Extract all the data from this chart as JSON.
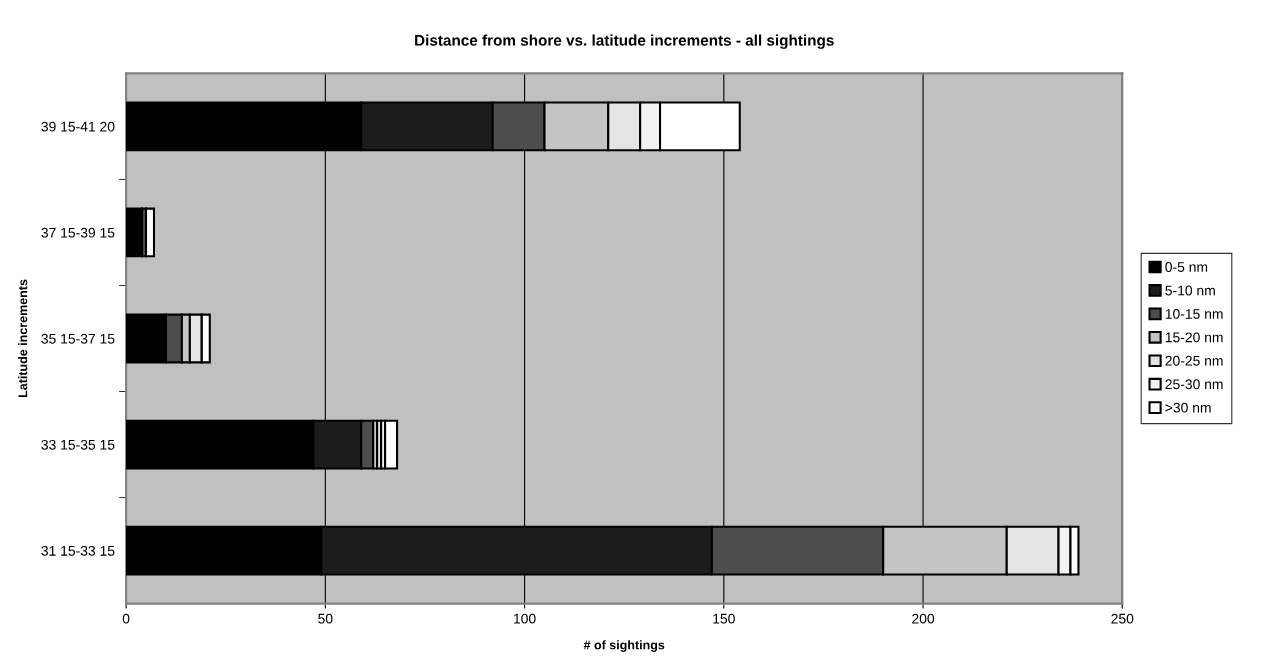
{
  "chart_data": {
    "type": "bar",
    "orientation": "horizontal",
    "stacked": true,
    "title": "Distance from shore vs. latitude increments - all sightings",
    "xlabel": "# of sightings",
    "ylabel": "Latitude increments",
    "categories": [
      "39 15-41 20",
      "37 15-39 15",
      "35 15-37 15",
      "33 15-35 15",
      "31 15-33 15"
    ],
    "series": [
      {
        "name": "0-5 nm",
        "color": "#000000",
        "values": [
          59,
          4,
          10,
          47,
          49
        ]
      },
      {
        "name": "5-10 nm",
        "color": "#1c1c1c",
        "values": [
          33,
          0,
          0,
          12,
          98
        ]
      },
      {
        "name": "10-15 nm",
        "color": "#4d4d4d",
        "values": [
          13,
          1,
          4,
          3,
          43
        ]
      },
      {
        "name": "15-20 nm",
        "color": "#c4c4c4",
        "values": [
          16,
          0,
          2,
          1,
          31
        ]
      },
      {
        "name": "20-25 nm",
        "color": "#e4e4e4",
        "values": [
          8,
          0,
          3,
          1,
          13
        ]
      },
      {
        "name": "25-30 nm",
        "color": "#f2f2f2",
        "values": [
          5,
          0,
          0,
          1,
          3
        ]
      },
      {
        "name": ">30 nm",
        "color": "#ffffff",
        "values": [
          20,
          2,
          2,
          3,
          2
        ]
      }
    ],
    "xlim": [
      0,
      250
    ],
    "xticks": [
      0,
      50,
      100,
      150,
      200,
      250
    ],
    "grid": "x",
    "legend": "right"
  }
}
